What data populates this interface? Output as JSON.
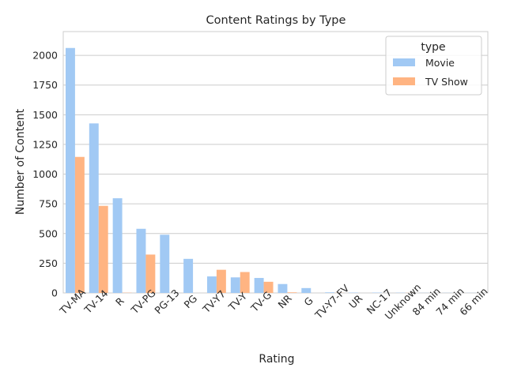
{
  "chart_data": {
    "type": "bar",
    "title": "Content Ratings by Type",
    "xlabel": "Rating",
    "ylabel": "Number of Content",
    "ylim": [
      0,
      2200
    ],
    "yticks": [
      0,
      250,
      500,
      750,
      1000,
      1250,
      1500,
      1750,
      2000
    ],
    "categories": [
      "TV-MA",
      "TV-14",
      "R",
      "TV-PG",
      "PG-13",
      "PG",
      "TV-Y7",
      "TV-Y",
      "TV-G",
      "NR",
      "G",
      "TV-Y7-FV",
      "UR",
      "NC-17",
      "Unknown",
      "84 min",
      "74 min",
      "66 min"
    ],
    "series": [
      {
        "name": "Movie",
        "color": "#a1c9f4",
        "values": [
          2062,
          1427,
          797,
          540,
          490,
          287,
          139,
          131,
          126,
          75,
          41,
          5,
          3,
          3,
          2,
          1,
          1,
          1
        ]
      },
      {
        "name": "TV Show",
        "color": "#ffb482",
        "values": [
          1145,
          733,
          2,
          323,
          0,
          0,
          195,
          176,
          94,
          5,
          0,
          1,
          0,
          0,
          1,
          0,
          0,
          0
        ]
      }
    ],
    "legend": {
      "title": "type",
      "position": "top-right"
    },
    "grid": "horizontal"
  }
}
